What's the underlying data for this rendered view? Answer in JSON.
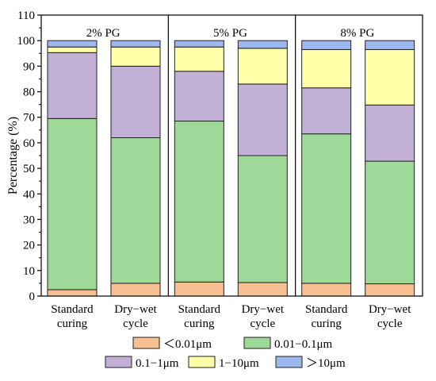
{
  "chart_data": {
    "type": "bar",
    "stacked": true,
    "ylabel": "Percentage (%)",
    "ylim": [
      0,
      110
    ],
    "yticks": [
      0,
      10,
      20,
      30,
      40,
      50,
      60,
      70,
      80,
      90,
      100,
      110
    ],
    "groups": [
      {
        "label": "2%  PG",
        "bars": [
          {
            "label": [
              "Standard",
              "curing"
            ],
            "values": [
              2.5,
              67.0,
              25.8,
              2.2,
              2.5
            ]
          },
          {
            "label": [
              "Dry−wet",
              "cycle"
            ],
            "values": [
              5.0,
              57.0,
              28.0,
              7.5,
              2.5
            ]
          }
        ]
      },
      {
        "label": "5%  PG",
        "bars": [
          {
            "label": [
              "Standard",
              "curing"
            ],
            "values": [
              5.5,
              63.0,
              19.5,
              9.5,
              2.5
            ]
          },
          {
            "label": [
              "Dry−wet",
              "cycle"
            ],
            "values": [
              5.3,
              49.7,
              28.0,
              14.0,
              3.0
            ]
          }
        ]
      },
      {
        "label": "8%  PG",
        "bars": [
          {
            "label": [
              "Standard",
              "curing"
            ],
            "values": [
              5.0,
              58.5,
              18.0,
              15.0,
              3.5
            ]
          },
          {
            "label": [
              "Dry−wet",
              "cycle"
            ],
            "values": [
              4.8,
              48.0,
              22.0,
              21.7,
              3.5
            ]
          }
        ]
      }
    ],
    "series": [
      {
        "name": "＜0.01μm",
        "color": "#F8BF93"
      },
      {
        "name": "0.01−0.1μm",
        "color": "#9FD99A"
      },
      {
        "name": "0.1−1μm",
        "color": "#C3B0D6"
      },
      {
        "name": "1−10μm",
        "color": "#FFFFA8"
      },
      {
        "name": "＞10μm",
        "color": "#9DB8EE"
      }
    ],
    "legend_position": "bottom",
    "grid": false
  }
}
